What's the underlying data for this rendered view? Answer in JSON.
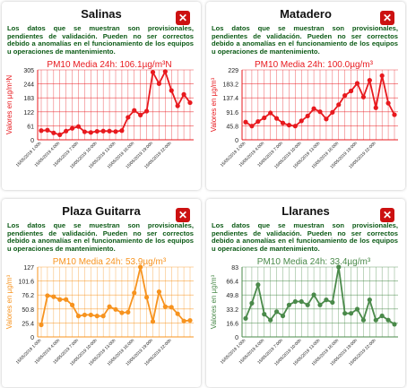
{
  "notice": "Los datos que se muestran son provisionales, pendientes de validación. Pueden no ser correctos debido a anomalías en el funcionamiento de los equipos u operaciones de mantenimiento.",
  "close_symbol": "✕",
  "ylabel": "Valores en µg/m³",
  "x_ticks": [
    "15/05/2019 1:00h",
    "15/05/2019 4:00h",
    "15/05/2019 7:00h",
    "15/05/2019 10:00h",
    "15/05/2019 13:00h",
    "15/05/2019 16:00h",
    "15/05/2019 19:00h",
    "15/05/2019 22:00h"
  ],
  "chart_data": [
    {
      "type": "line",
      "station": "Salinas",
      "title": "PM10 Media 24h: 106.1µg/m³N",
      "ylabel": "Valores en µg/m³N",
      "color": "#e8191e",
      "yticks": [
        "0",
        "61",
        "122",
        "183",
        "244",
        "305"
      ],
      "ylim": [
        0,
        305
      ],
      "values": [
        40,
        42,
        30,
        22,
        38,
        50,
        58,
        35,
        32,
        37,
        38,
        38,
        36,
        40,
        98,
        128,
        108,
        125,
        295,
        245,
        298,
        215,
        148,
        198,
        162
      ]
    },
    {
      "type": "line",
      "station": "Matadero",
      "title": "PM10 Media 24h: 100.0µg/m³",
      "ylabel": "Valores en µg/m³",
      "color": "#e8191e",
      "yticks": [
        "0",
        "45.8",
        "91.6",
        "137.4",
        "183.2",
        "229"
      ],
      "ylim": [
        0,
        229
      ],
      "values": [
        58,
        45,
        60,
        72,
        88,
        70,
        55,
        48,
        45,
        62,
        78,
        102,
        92,
        68,
        90,
        115,
        145,
        160,
        185,
        140,
        195,
        105,
        210,
        120,
        82
      ]
    },
    {
      "type": "line",
      "station": "Plaza Guitarra",
      "title": "PM10 Media 24h: 53.9µg/m³",
      "ylabel": "Valores en µg/m³",
      "color": "#f7931e",
      "yticks": [
        "0",
        "25.4",
        "50.8",
        "76.2",
        "101.6",
        "127"
      ],
      "ylim": [
        0,
        127
      ],
      "values": [
        22,
        75,
        73,
        68,
        68,
        58,
        38,
        40,
        40,
        38,
        38,
        55,
        50,
        44,
        45,
        80,
        127,
        72,
        28,
        82,
        55,
        54,
        42,
        29,
        30
      ]
    },
    {
      "type": "line",
      "station": "Llaranes",
      "title": "PM10 Media 24h: 33.4µg/m³",
      "ylabel": "Valores en µg/m³",
      "color": "#4a8a4a",
      "yticks": [
        "0",
        "16.6",
        "33.2",
        "49.8",
        "66.4",
        "83"
      ],
      "ylim": [
        0,
        83
      ],
      "values": [
        22,
        40,
        62,
        27,
        20,
        30,
        25,
        38,
        42,
        42,
        38,
        50,
        38,
        44,
        41,
        83,
        28,
        28,
        33,
        20,
        44,
        20,
        25,
        20,
        15
      ]
    }
  ]
}
